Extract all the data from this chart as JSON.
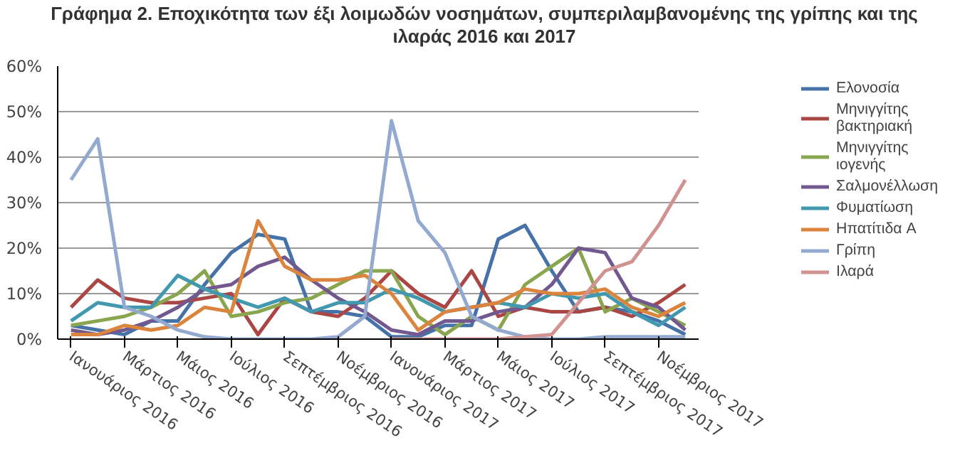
{
  "chart_data": {
    "type": "line",
    "title": "Γράφημα 2. Εποχικότητα των έξι λοιμωδών νοσημάτων, συμπεριλαμβανομένης της γρίπης και της ιλαράς 2016 και 2017",
    "categories": [
      "Ιανουάριος 2016",
      null,
      "Μάρτιος 2016",
      null,
      "Μάιος 2016",
      null,
      "Ιούλιος 2016",
      null,
      "Σεπτέμβριος 2016",
      null,
      "Νοέμβριος 2016",
      null,
      "Ιανουάριος 2017",
      null,
      "Μάρτιος 2017",
      null,
      "Μάιος 2017",
      null,
      "Ιούλιος 2017",
      null,
      "Σεπτέμβριος 2017",
      null,
      "Νοέμβριος 2017",
      null
    ],
    "series": [
      {
        "name": "Ελονοσία",
        "color": "#4572a7",
        "values": [
          3,
          2,
          1,
          4,
          4,
          12,
          19,
          23,
          22,
          6,
          6,
          5,
          0.5,
          0.5,
          3,
          3,
          22,
          25,
          15,
          6,
          7,
          6,
          4,
          1
        ]
      },
      {
        "name": "Μηνιγγίτης βακτηριακή",
        "color": "#aa4643",
        "values": [
          7,
          13,
          9,
          8,
          8,
          9,
          10,
          1,
          9,
          6,
          5,
          9,
          15,
          10,
          7,
          15,
          5,
          7,
          6,
          6,
          7,
          5,
          8,
          12
        ]
      },
      {
        "name": "Μηνιγγίτης ιογενής",
        "color": "#89a54e",
        "values": [
          3,
          4,
          5,
          7,
          10,
          15,
          5,
          6,
          8,
          9,
          12,
          15,
          15,
          5,
          1,
          5,
          2,
          12,
          16,
          20,
          6,
          9,
          6,
          3
        ]
      },
      {
        "name": "Σαλμονέλλωση",
        "color": "#71588f",
        "values": [
          2,
          1,
          2,
          4,
          7,
          11,
          12,
          16,
          18,
          13,
          9,
          6,
          2,
          1,
          4,
          4,
          6,
          7,
          12,
          20,
          19,
          9,
          7,
          2
        ]
      },
      {
        "name": "Φυματίωση",
        "color": "#4198af",
        "values": [
          4,
          8,
          7,
          7,
          14,
          11,
          9,
          7,
          9,
          6,
          8,
          8,
          11,
          9,
          6,
          7,
          8,
          7,
          10,
          9,
          10,
          6,
          3,
          7
        ]
      },
      {
        "name": "Ηπατίτιδα A",
        "color": "#db843d",
        "values": [
          1,
          1,
          3,
          2,
          3,
          7,
          6,
          26,
          16,
          13,
          13,
          14,
          10,
          2,
          6,
          7,
          8,
          11,
          10,
          10,
          11,
          7,
          5,
          8
        ]
      },
      {
        "name": "Γρίπη",
        "color": "#93a9cf",
        "values": [
          35,
          44,
          7,
          5,
          2,
          0.5,
          0,
          0,
          0,
          0,
          0.5,
          5,
          48,
          26,
          19,
          5,
          2,
          0.5,
          0,
          0,
          0.5,
          0.5,
          0.5,
          0.5
        ]
      },
      {
        "name": "Ιλαρά",
        "color": "#d19392",
        "values": [
          null,
          null,
          null,
          null,
          null,
          null,
          null,
          null,
          null,
          null,
          null,
          null,
          0,
          0,
          0,
          0,
          0,
          0.5,
          1,
          8,
          15,
          17,
          25,
          35
        ]
      }
    ],
    "ylim": [
      0,
      60
    ],
    "yticks": [
      {
        "value": 0,
        "label": "0%"
      },
      {
        "value": 10,
        "label": "10%"
      },
      {
        "value": 20,
        "label": "20%"
      },
      {
        "value": 30,
        "label": "30%"
      },
      {
        "value": 40,
        "label": "40%"
      },
      {
        "value": 50,
        "label": "50%"
      },
      {
        "value": 60,
        "label": "60%"
      }
    ],
    "grid": "y",
    "legend": "right"
  }
}
